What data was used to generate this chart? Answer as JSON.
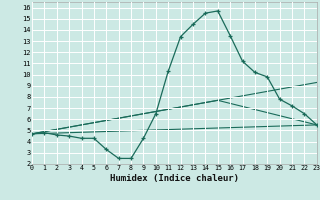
{
  "xlabel": "Humidex (Indice chaleur)",
  "xlim": [
    0,
    23
  ],
  "ylim": [
    2,
    16.5
  ],
  "yticks": [
    2,
    3,
    4,
    5,
    6,
    7,
    8,
    9,
    10,
    11,
    12,
    13,
    14,
    15,
    16
  ],
  "xticks": [
    0,
    1,
    2,
    3,
    4,
    5,
    6,
    7,
    8,
    9,
    10,
    11,
    12,
    13,
    14,
    15,
    16,
    17,
    18,
    19,
    20,
    21,
    22,
    23
  ],
  "bg_color": "#cce9e4",
  "grid_color": "#ffffff",
  "line_color": "#1a6b5a",
  "line1_x": [
    0,
    1,
    2,
    3,
    4,
    5,
    6,
    7,
    8,
    9,
    10,
    11,
    12,
    13,
    14,
    15,
    16,
    17,
    18,
    19,
    20,
    21,
    22,
    23
  ],
  "line1_y": [
    4.7,
    4.8,
    4.6,
    4.5,
    4.3,
    4.3,
    3.3,
    2.5,
    2.5,
    4.3,
    6.5,
    10.3,
    13.4,
    14.5,
    15.5,
    15.7,
    13.5,
    11.2,
    10.2,
    9.8,
    7.8,
    7.2,
    6.5,
    5.5
  ],
  "line2_x": [
    0,
    23
  ],
  "line2_y": [
    4.7,
    9.3
  ],
  "line3_x": [
    0,
    23
  ],
  "line3_y": [
    4.7,
    5.5
  ],
  "line4_x": [
    0,
    15,
    23
  ],
  "line4_y": [
    4.7,
    7.7,
    5.5
  ]
}
